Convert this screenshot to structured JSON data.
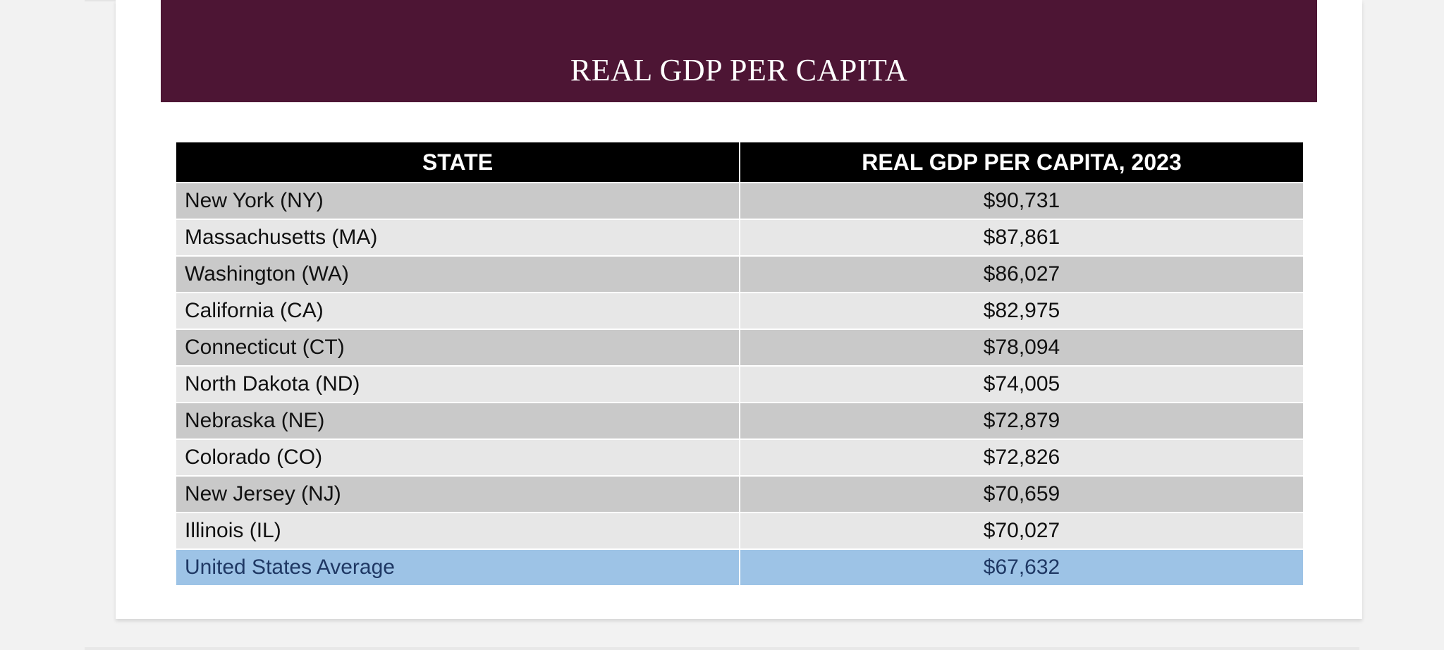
{
  "slide": {
    "title": "REAL GDP PER CAPITA"
  },
  "table": {
    "headers": [
      "STATE",
      "REAL GDP PER CAPITA, 2023"
    ],
    "rows": [
      {
        "state": "New York (NY)",
        "value": "$90,731"
      },
      {
        "state": "Massachusetts (MA)",
        "value": "$87,861"
      },
      {
        "state": "Washington (WA)",
        "value": "$86,027"
      },
      {
        "state": "California (CA)",
        "value": "$82,975"
      },
      {
        "state": "Connecticut (CT)",
        "value": "$78,094"
      },
      {
        "state": "North Dakota (ND)",
        "value": "$74,005"
      },
      {
        "state": "Nebraska (NE)",
        "value": "$72,879"
      },
      {
        "state": "Colorado (CO)",
        "value": "$72,826"
      },
      {
        "state": "New Jersey (NJ)",
        "value": "$70,659"
      },
      {
        "state": "Illinois (IL)",
        "value": "$70,027"
      },
      {
        "state": "United States Average",
        "value": "$67,632"
      }
    ]
  },
  "colors": {
    "banner": "#4d1534",
    "header_row": "#000000",
    "row_dark": "#c9c9c9",
    "row_light": "#e7e7e7",
    "average_row": "#9dc3e6"
  }
}
